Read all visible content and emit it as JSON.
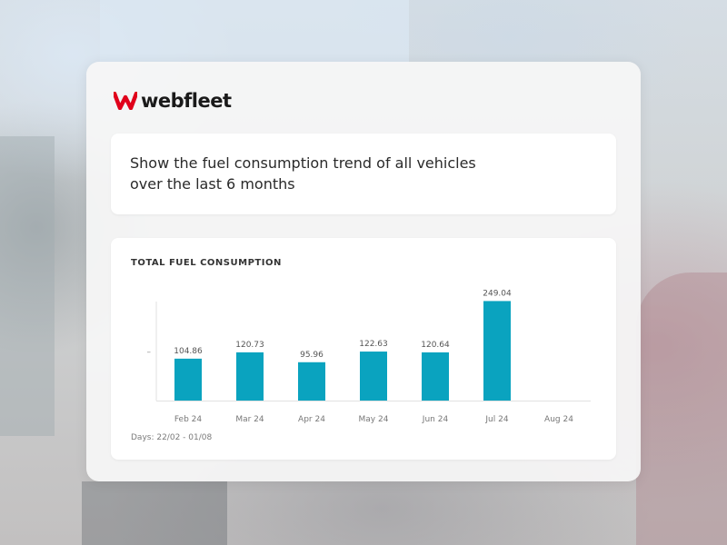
{
  "brand": {
    "name": "webfleet",
    "accent_color": "#e0001b"
  },
  "prompt": {
    "text": "Show the fuel consumption trend of all vehicles over the last 6 months"
  },
  "chart": {
    "days_label": "Days: 22/02 - 01/08",
    "bar_color": "#0aa3bf"
  },
  "chart_data": {
    "type": "bar",
    "title": "TOTAL FUEL CONSUMPTION",
    "categories": [
      "Feb 24",
      "Mar 24",
      "Apr 24",
      "May 24",
      "Jun 24",
      "Jul 24",
      "Aug 24"
    ],
    "values": [
      104.86,
      120.73,
      95.96,
      122.63,
      120.64,
      249.04,
      null
    ],
    "value_labels": [
      "104.86",
      "120.73",
      "95.96",
      "122.63",
      "120.64",
      "249.04",
      ""
    ],
    "ylim": [
      0,
      250
    ],
    "y_tick_labels": [
      "–"
    ],
    "grid": false
  }
}
